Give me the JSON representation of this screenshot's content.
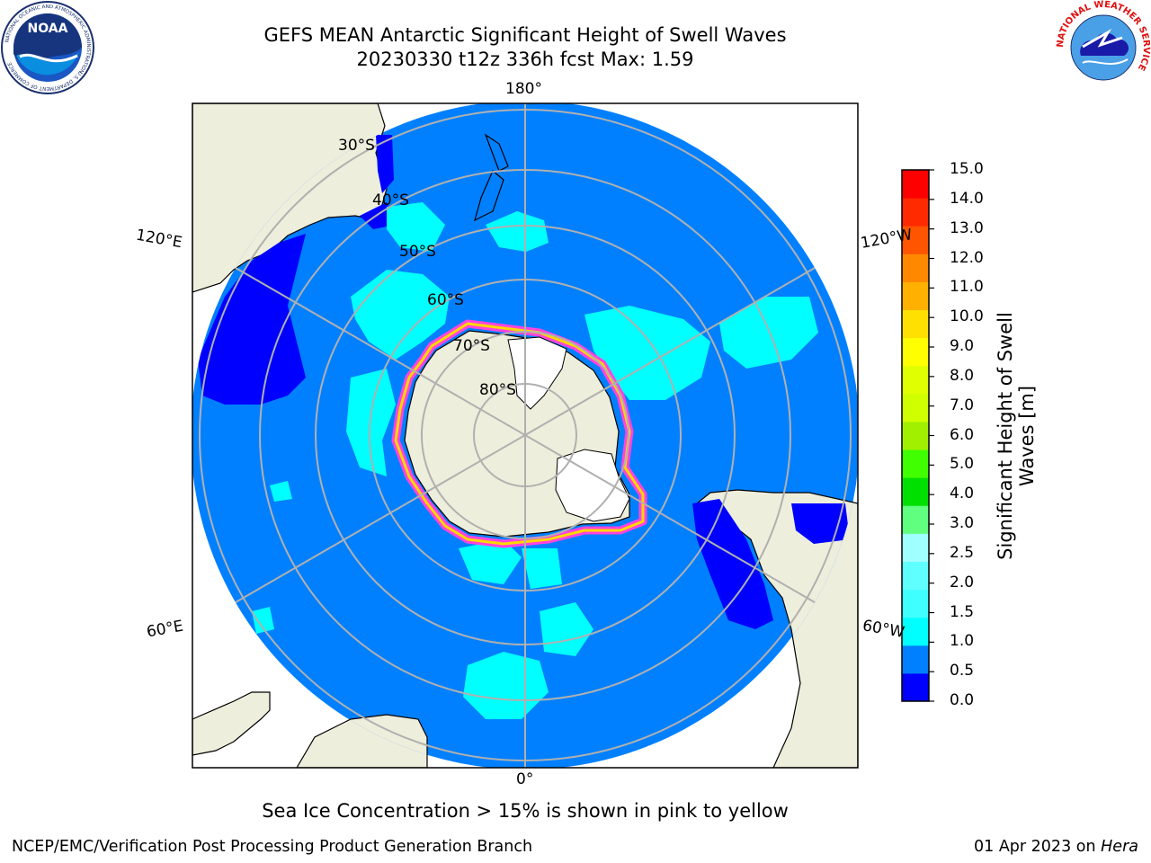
{
  "header": {
    "title_line1": "GEFS MEAN Antarctic Significant Height of Swell Waves",
    "title_line2": "20230330 t12z 336h fcst   Max: 1.59"
  },
  "logos": {
    "noaa_text": "NOAA",
    "noaa_ring_text": "NATIONAL OCEANIC AND ATMOSPHERIC ADMINISTRATION",
    "noaa_ring_bottom": "U.S. DEPARTMENT OF COMMERCE",
    "nws_ring_text": "NATIONAL WEATHER SERVICE"
  },
  "map": {
    "projection": "south-polar-stereographic",
    "lon_labels": {
      "top": "180°",
      "bottom": "0°",
      "upper_left": "120°E",
      "lower_left": "60°E",
      "upper_right": "120°W",
      "lower_right": "60°W"
    },
    "lat_labels": [
      "30°S",
      "40°S",
      "50°S",
      "60°S",
      "70°S",
      "80°S"
    ],
    "colors": {
      "ocean": "#0080ff",
      "land": "#eeeedc",
      "ice_shelf": "#ffffff",
      "low_swell": "#0000ff",
      "mid_swell": "#00ffff",
      "sea_ice_edge": "#ff44dd",
      "grid": "#b0b0b0"
    }
  },
  "colorbar": {
    "title": "Significant Height of Swell Waves [m]",
    "ticks": [
      "0.0",
      "0.5",
      "1.0",
      "1.5",
      "2.0",
      "2.5",
      "3.0",
      "4.0",
      "5.0",
      "6.0",
      "7.0",
      "8.0",
      "9.0",
      "10.0",
      "11.0",
      "12.0",
      "13.0",
      "14.0",
      "15.0"
    ],
    "colors": [
      "#0000ff",
      "#0080ff",
      "#00ffff",
      "#40ffff",
      "#60ffff",
      "#a0ffff",
      "#60ff80",
      "#00e000",
      "#40ff00",
      "#a0f000",
      "#d0ff00",
      "#e0ff00",
      "#ffff00",
      "#ffe000",
      "#ffb000",
      "#ff8800",
      "#ff5500",
      "#ff2a00",
      "#ff0000"
    ]
  },
  "caption": "Sea Ice Concentration > 15% is shown in pink to yellow",
  "footer": {
    "left": "NCEP/EMC/Verification Post Processing Product Generation Branch",
    "right_date": "01 Apr 2023 on ",
    "right_host": "Hera"
  }
}
